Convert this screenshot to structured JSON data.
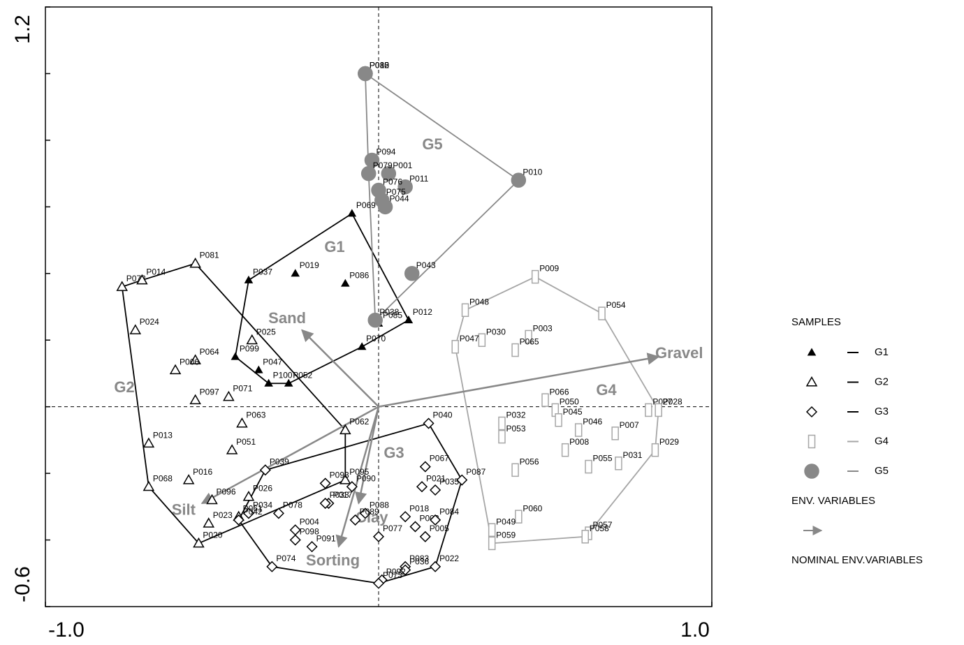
{
  "chart_data": {
    "type": "scatter",
    "xlim": [
      -1.0,
      1.0
    ],
    "ylim": [
      -0.6,
      1.2
    ],
    "xticks": [
      {
        "value": -1.0,
        "label": "-1.0"
      },
      {
        "value": 1.0,
        "label": "1.0"
      }
    ],
    "yticks": [
      -0.6,
      1.2
    ],
    "yminor_ticks": [
      -0.4,
      -0.2,
      0,
      0.2,
      0.4,
      0.6,
      0.8,
      1.0
    ],
    "legend_title": "SAMPLES",
    "series": [
      {
        "name": "G1",
        "color": "#000000",
        "marker": "triangle",
        "filled": true,
        "labels": [
          "P069",
          "P019",
          "P086",
          "P037",
          "P012",
          "P085",
          "P070",
          "P099",
          "P047",
          "P100",
          "P052"
        ],
        "x": [
          -0.08,
          -0.25,
          -0.1,
          -0.39,
          0.09,
          0.0,
          -0.05,
          -0.43,
          -0.36,
          -0.33,
          -0.27
        ],
        "y": [
          0.58,
          0.4,
          0.37,
          0.38,
          0.26,
          0.25,
          0.18,
          0.15,
          0.11,
          0.07,
          0.07
        ]
      },
      {
        "name": "G2",
        "color": "#000000",
        "marker": "triangle",
        "filled": false,
        "labels": [
          "P081",
          "P072",
          "P014",
          "P024",
          "P025",
          "P064",
          "P006",
          "P097",
          "P071",
          "P063",
          "P062",
          "P013",
          "P051",
          "P016",
          "P068",
          "P095",
          "P026",
          "P096",
          "P023",
          "P061",
          "P020"
        ],
        "x": [
          -0.55,
          -0.77,
          -0.71,
          -0.73,
          -0.38,
          -0.55,
          -0.61,
          -0.55,
          -0.45,
          -0.41,
          -0.1,
          -0.69,
          -0.44,
          -0.57,
          -0.69,
          -0.1,
          -0.39,
          -0.5,
          -0.51,
          -0.42,
          -0.54
        ],
        "y": [
          0.43,
          0.36,
          0.38,
          0.23,
          0.2,
          0.14,
          0.11,
          0.02,
          0.03,
          -0.05,
          -0.07,
          -0.11,
          -0.13,
          -0.22,
          -0.24,
          -0.22,
          -0.27,
          -0.28,
          -0.35,
          -0.33,
          -0.41
        ]
      },
      {
        "name": "G3",
        "color": "#000000",
        "marker": "diamond",
        "filled": false,
        "labels": [
          "P040",
          "P067",
          "P087",
          "P021",
          "P035",
          "P039",
          "P093",
          "P090",
          "P017",
          "P033",
          "P078",
          "P034",
          "P042",
          "P018",
          "P088",
          "P089",
          "P002",
          "P084",
          "P004",
          "P077",
          "P005",
          "P098",
          "P091",
          "P083",
          "P022",
          "P074",
          "P036",
          "P092",
          "P073"
        ],
        "x": [
          0.15,
          0.14,
          0.25,
          0.13,
          0.17,
          -0.34,
          -0.16,
          -0.08,
          -0.15,
          -0.16,
          -0.3,
          -0.39,
          -0.42,
          0.08,
          -0.04,
          -0.07,
          0.11,
          0.17,
          -0.25,
          0.0,
          0.14,
          -0.25,
          -0.2,
          0.08,
          0.17,
          -0.32,
          0.08,
          0.01,
          0.0
        ],
        "y": [
          -0.05,
          -0.18,
          -0.22,
          -0.24,
          -0.25,
          -0.19,
          -0.23,
          -0.24,
          -0.29,
          -0.29,
          -0.32,
          -0.32,
          -0.34,
          -0.33,
          -0.32,
          -0.34,
          -0.36,
          -0.34,
          -0.37,
          -0.39,
          -0.39,
          -0.4,
          -0.42,
          -0.48,
          -0.48,
          -0.48,
          -0.49,
          -0.52,
          -0.53
        ]
      },
      {
        "name": "G4",
        "color": "#a6a6a6",
        "marker": "rectangle",
        "filled": false,
        "labels": [
          "P009",
          "P048",
          "P054",
          "P030",
          "P003",
          "P047",
          "P065",
          "P066",
          "P050",
          "P045",
          "P032",
          "P053",
          "P046",
          "P027",
          "P028",
          "P007",
          "P008",
          "P029",
          "P031",
          "P055",
          "P056",
          "P060",
          "P049",
          "P057",
          "P058",
          "P059"
        ],
        "x": [
          0.47,
          0.26,
          0.67,
          0.31,
          0.45,
          0.23,
          0.41,
          0.5,
          0.53,
          0.54,
          0.37,
          0.37,
          0.6,
          0.81,
          0.84,
          0.71,
          0.56,
          0.83,
          0.72,
          0.63,
          0.41,
          0.42,
          0.34,
          0.63,
          0.62,
          0.34
        ],
        "y": [
          0.39,
          0.29,
          0.28,
          0.2,
          0.21,
          0.18,
          0.17,
          0.02,
          -0.01,
          -0.04,
          -0.05,
          -0.09,
          -0.07,
          -0.01,
          -0.01,
          -0.08,
          -0.13,
          -0.13,
          -0.17,
          -0.18,
          -0.19,
          -0.33,
          -0.37,
          -0.38,
          -0.39,
          -0.41
        ]
      },
      {
        "name": "G5",
        "color": "#888888",
        "marker": "circle",
        "filled": true,
        "labels": [
          "P082",
          "P015",
          "P080",
          "P094",
          "P001",
          "P079",
          "P011",
          "P076",
          "P075",
          "P044",
          "P010",
          "P043",
          "P038"
        ],
        "x": [
          -0.04,
          -0.04,
          -0.04,
          -0.02,
          0.03,
          -0.03,
          0.08,
          0.0,
          0.01,
          0.02,
          0.42,
          0.1,
          -0.01
        ],
        "y": [
          1.0,
          1.0,
          1.0,
          0.74,
          0.7,
          0.7,
          0.66,
          0.65,
          0.62,
          0.6,
          0.68,
          0.4,
          0.26
        ]
      }
    ],
    "env_variables": {
      "title": "ENV. VARIABLES",
      "color": "#888888",
      "names": [
        "Sand",
        "Gravel",
        "Silt",
        "Clay",
        "Sorting"
      ],
      "x": [
        -0.23,
        0.84,
        -0.53,
        -0.06,
        -0.12
      ],
      "y": [
        0.23,
        0.15,
        -0.29,
        -0.29,
        -0.42
      ]
    },
    "nominal_title": "NOMINAL ENV.VARIABLES"
  }
}
